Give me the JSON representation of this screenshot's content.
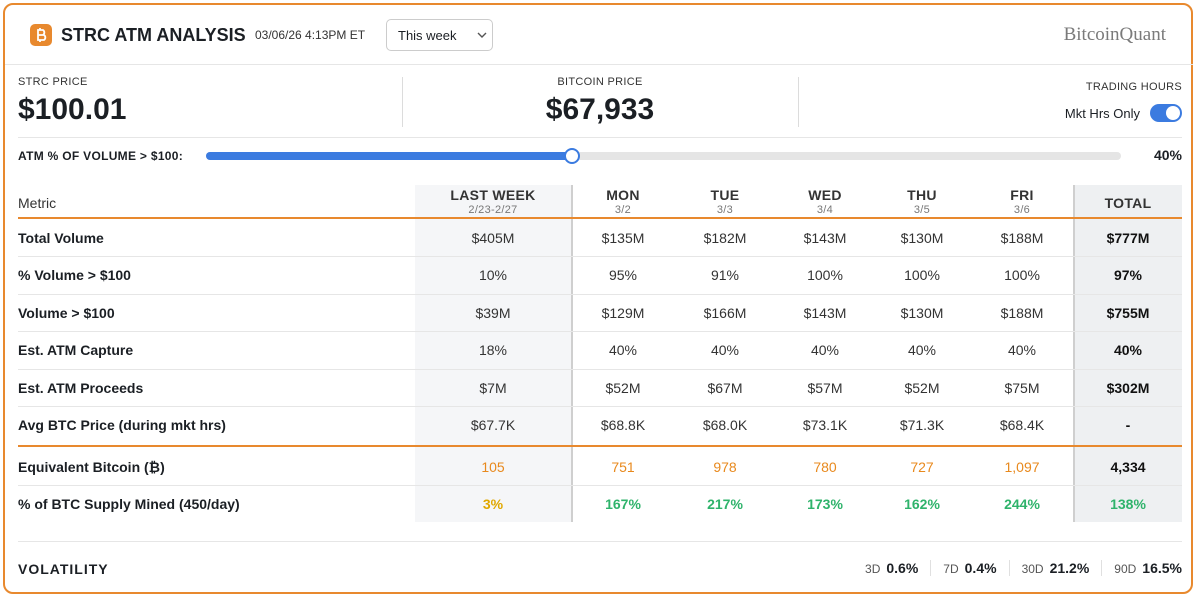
{
  "header": {
    "title": "STRC ATM ANALYSIS",
    "timestamp": "03/06/26 4:13PM ET",
    "period": "This week",
    "brand": "BitcoinQuant"
  },
  "prices": [
    {
      "label": "STRC PRICE",
      "value": "$100.01"
    },
    {
      "label": "BITCOIN PRICE",
      "value": "$67,933"
    }
  ],
  "trading_hours": {
    "label": "TRADING HOURS",
    "toggle_label": "Mkt Hrs Only"
  },
  "atm": {
    "label": "ATM % OF VOLUME > $100:",
    "value": {
      "value": 40,
      "label": "40%"
    }
  },
  "table": {
    "columns": [
      {
        "name": "Metric"
      },
      {
        "name": "LAST WEEK",
        "sub": "2/23-2/27"
      },
      {
        "name": "MON",
        "sub": "3/2"
      },
      {
        "name": "TUE",
        "sub": "3/3"
      },
      {
        "name": "WED",
        "sub": "3/4"
      },
      {
        "name": "THU",
        "sub": "3/5"
      },
      {
        "name": "FRI",
        "sub": "3/6"
      },
      {
        "name": "TOTAL"
      }
    ],
    "rows": [
      {
        "label": "Total Volume",
        "cells": [
          "$405M",
          "$135M",
          "$182M",
          "$143M",
          "$130M",
          "$188M",
          "$777M"
        ]
      },
      {
        "label": "% Volume > $100",
        "cells": [
          "10%",
          "95%",
          "91%",
          "100%",
          "100%",
          "100%",
          "97%"
        ]
      },
      {
        "label": "Volume > $100",
        "cells": [
          "$39M",
          "$129M",
          "$166M",
          "$143M",
          "$130M",
          "$188M",
          "$755M"
        ]
      },
      {
        "label": "Est. ATM Capture",
        "cells": [
          "18%",
          "40%",
          "40%",
          "40%",
          "40%",
          "40%",
          "40%"
        ]
      },
      {
        "label": "Est. ATM Proceeds",
        "cells": [
          "$7M",
          "$52M",
          "$67M",
          "$57M",
          "$52M",
          "$75M",
          "$302M"
        ]
      },
      {
        "label": "Avg BTC Price (during mkt hrs)",
        "cells": [
          "$67.7K",
          "$68.8K",
          "$68.0K",
          "$73.1K",
          "$71.3K",
          "$68.4K",
          "-"
        ]
      },
      {
        "label": "Equivalent Bitcoin (₿)",
        "cells": [
          "105",
          "751",
          "978",
          "780",
          "727",
          "1,097",
          "4,334"
        ]
      },
      {
        "label": "% of BTC Supply Mined (450/day)",
        "cells": [
          "3%",
          "167%",
          "217%",
          "173%",
          "162%",
          "244%",
          "138%"
        ]
      }
    ]
  },
  "volatility": {
    "label": "VOLATILITY",
    "items": [
      {
        "period": "3D",
        "value": "0.6%"
      },
      {
        "period": "7D",
        "value": "0.4%"
      },
      {
        "period": "30D",
        "value": "21.2%"
      },
      {
        "period": "90D",
        "value": "16.5%"
      }
    ]
  }
}
